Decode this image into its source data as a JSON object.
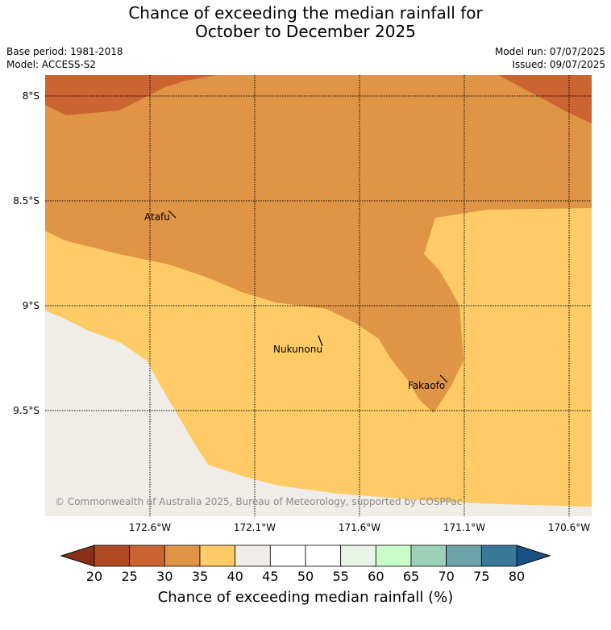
{
  "title": {
    "line1": "Chance of exceeding the median rainfall for",
    "line2": "October to December 2025"
  },
  "meta": {
    "base_period": "Base period: 1981-2018",
    "model": "Model: ACCESS-S2",
    "model_run": "Model run: 07/07/2025",
    "issued": "Issued: 09/07/2025"
  },
  "map": {
    "lat_labels": [
      "8°S",
      "8.5°S",
      "9°S",
      "9.5°S"
    ],
    "lon_labels": [
      "172.6°W",
      "172.1°W",
      "171.6°W",
      "171.1°W",
      "170.6°W"
    ],
    "places": [
      "Atafu",
      "Nukunonu",
      "Fakaofo"
    ],
    "copyright": "© Commonwealth of Australia 2025, Bureau of Meteorology, supported by COSPPac",
    "regions": [
      {
        "category": "20-25% / 25-30%",
        "color": "#cc6432"
      },
      {
        "category": "30-35%",
        "color": "#e09445"
      },
      {
        "category": "35-40%",
        "color": "#fecb66"
      },
      {
        "category": "40-45%",
        "color": "#f0ede8"
      }
    ]
  },
  "colorbar": {
    "label": "Chance of exceeding median rainfall (%)",
    "ticks": [
      "20",
      "25",
      "30",
      "35",
      "40",
      "45",
      "50",
      "55",
      "60",
      "65",
      "70",
      "75",
      "80"
    ],
    "colors": [
      "#b04a25",
      "#cc6432",
      "#e09445",
      "#fecb66",
      "#f0ede8",
      "#ffffff",
      "#ffffff",
      "#e8f4e6",
      "#c8fcc8",
      "#9dd0b8",
      "#6aa4a8",
      "#3a7899"
    ],
    "extend_low_color": "#8b3018",
    "extend_high_color": "#1a5287"
  }
}
